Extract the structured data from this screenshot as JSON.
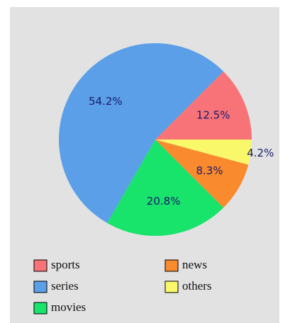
{
  "chart_data": {
    "type": "pie",
    "categories": [
      "sports",
      "series",
      "movies",
      "news",
      "others"
    ],
    "values": [
      12.5,
      54.2,
      20.8,
      8.3,
      4.2
    ],
    "value_labels": [
      "12.5%",
      "54.2%",
      "20.8%",
      "8.3%",
      "4.2%"
    ],
    "colors": [
      "#f77378",
      "#5a9fe8",
      "#18e36b",
      "#f98a2e",
      "#f8f86a"
    ],
    "legend": "bottom"
  }
}
